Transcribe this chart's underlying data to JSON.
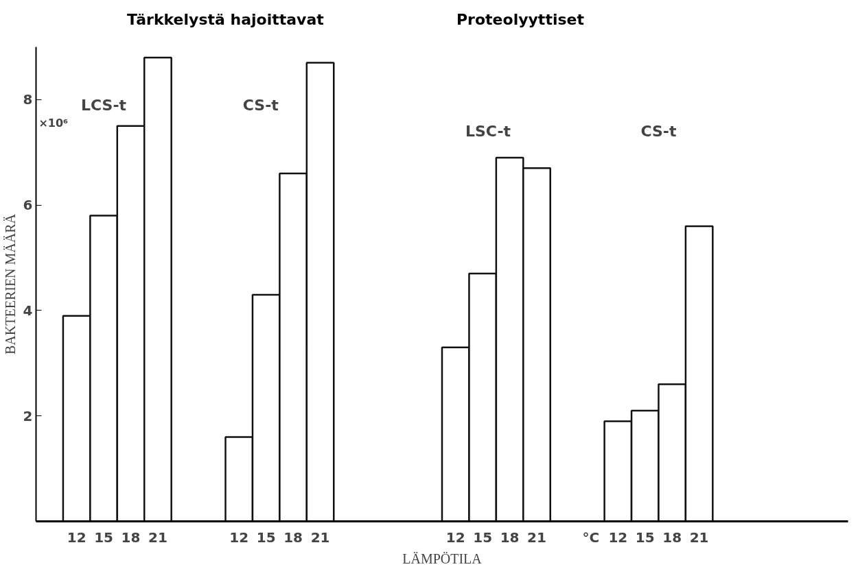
{
  "chart_data": {
    "type": "bar",
    "categories": [
      null,
      "12",
      "15",
      "18",
      "21",
      null,
      null,
      "12",
      "15",
      "18",
      "21",
      null,
      null,
      null,
      null,
      "12",
      "15",
      "18",
      "21",
      null,
      "°C",
      "12",
      "15",
      "18",
      "21",
      null,
      null,
      null,
      null,
      null
    ],
    "series": [
      {
        "color": "#ffffff",
        "values": [
          null,
          3.9,
          5.8,
          7.5,
          8.8,
          null,
          null,
          1.6,
          4.3,
          6.6,
          8.7,
          null,
          null,
          null,
          null,
          3.3,
          4.7,
          6.9,
          6.7,
          null,
          null,
          1.9,
          2.1,
          2.6,
          5.6,
          null,
          null,
          null,
          null,
          null
        ]
      }
    ],
    "ylim": [
      0,
      9
    ],
    "yticks": [
      2,
      4,
      6,
      8
    ],
    "xlabel": "LÄMPÖTILA",
    "ylabel": "BAKTEERIEN MÄÄRÄ",
    "annotations": [
      "×10⁶",
      "Tärkkelystä hajoittavat",
      "Proteolyyttiset",
      "LCS-t",
      "CS-t",
      "LSC-t",
      "CS-t"
    ],
    "grid": false
  }
}
